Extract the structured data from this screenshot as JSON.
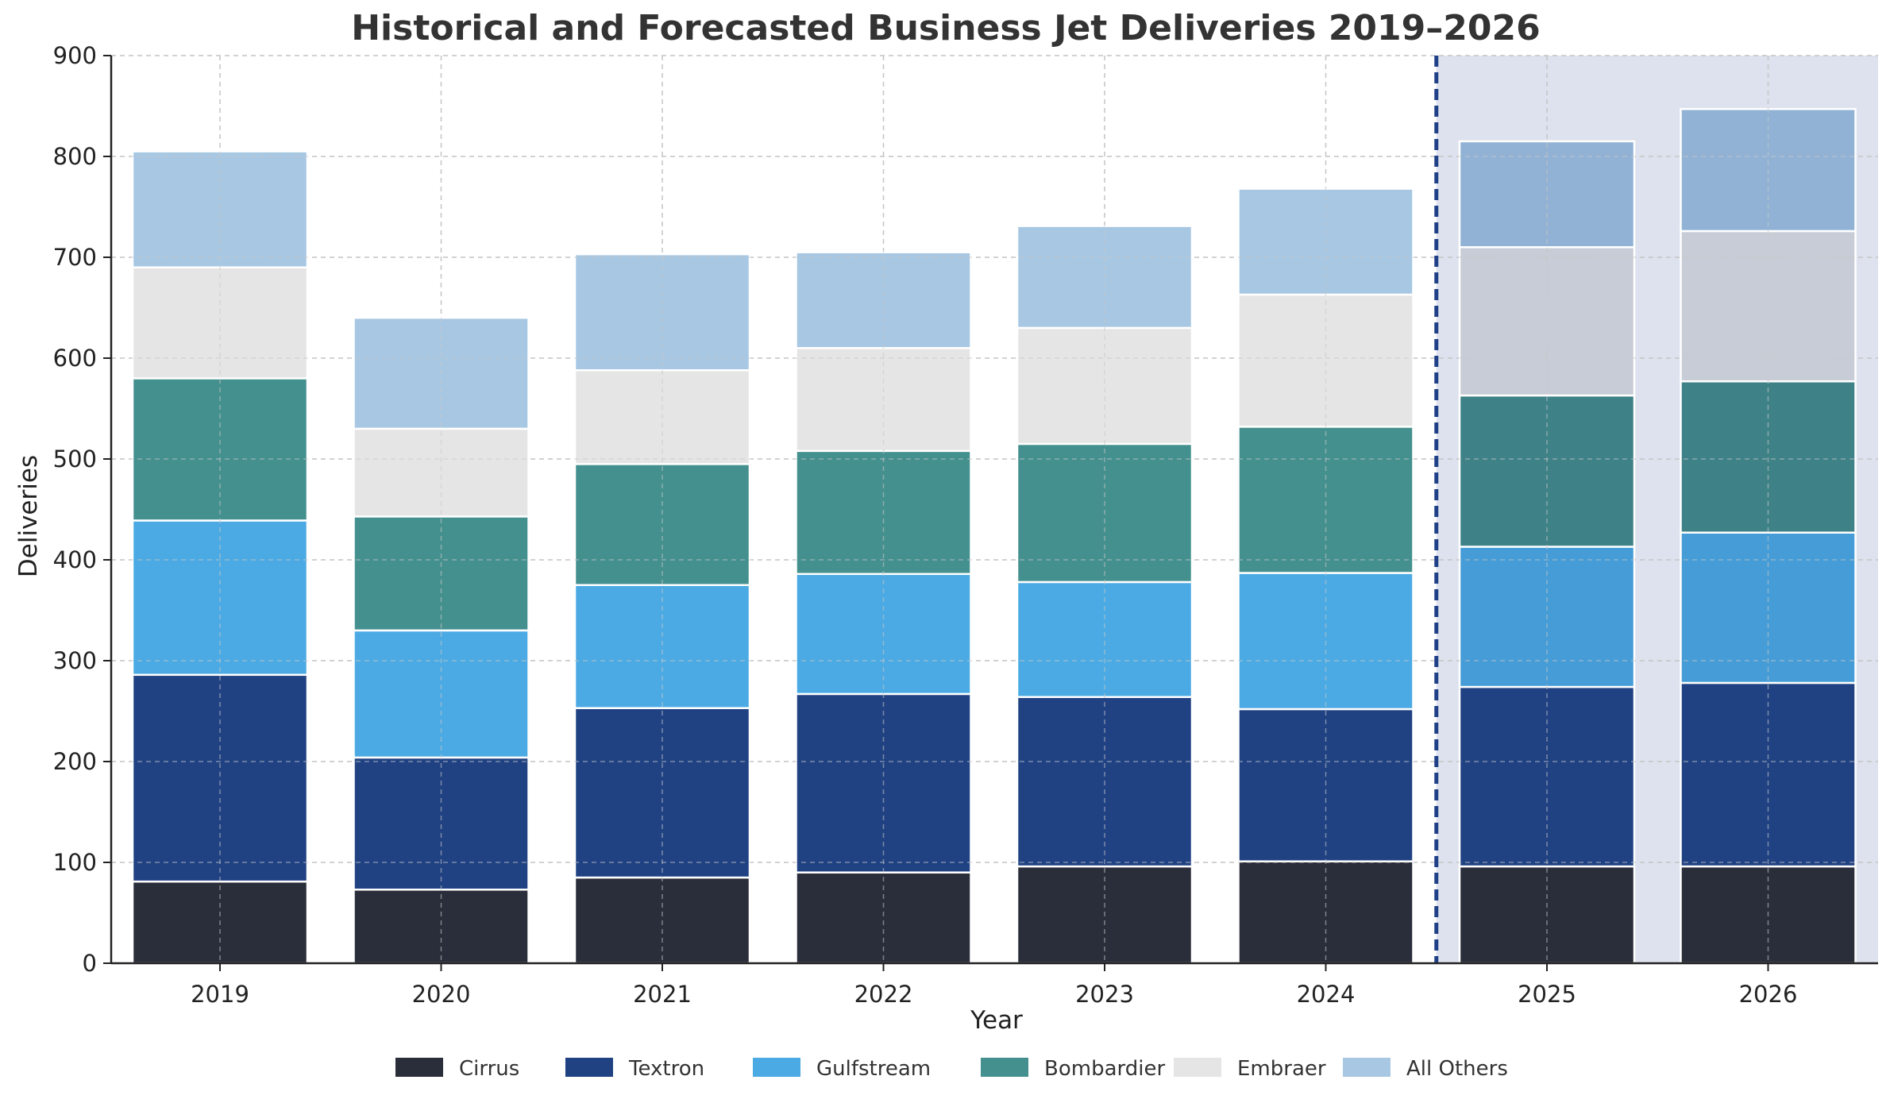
{
  "chart_data": {
    "type": "bar",
    "stacked": true,
    "title": "Historical and Forecasted Business Jet Deliveries 2019–2026",
    "xlabel": "Year",
    "ylabel": "Deliveries",
    "ylim": [
      0,
      900
    ],
    "yticks": [
      0,
      100,
      200,
      300,
      400,
      500,
      600,
      700,
      800,
      900
    ],
    "grid": true,
    "legend_position": "bottom",
    "categories": [
      "2019",
      "2020",
      "2021",
      "2022",
      "2023",
      "2024",
      "2025",
      "2026"
    ],
    "forecast_start_index": 6,
    "series": [
      {
        "name": "Cirrus",
        "color": "#2a2d3a",
        "forecast_color": "#2a2d3a",
        "values": [
          81,
          73,
          85,
          90,
          96,
          101,
          96,
          96
        ]
      },
      {
        "name": "Textron",
        "color": "#204283",
        "forecast_color": "#204283",
        "values": [
          205,
          131,
          168,
          177,
          168,
          151,
          178,
          182
        ]
      },
      {
        "name": "Gulfstream",
        "color": "#4baae3",
        "forecast_color": "#459cd6",
        "values": [
          153,
          126,
          122,
          119,
          114,
          135,
          139,
          149
        ]
      },
      {
        "name": "Bombardier",
        "color": "#44908f",
        "forecast_color": "#3e8287",
        "values": [
          141,
          113,
          120,
          122,
          137,
          145,
          150,
          150
        ]
      },
      {
        "name": "Embraer",
        "color": "#e5e5e5",
        "forecast_color": "#c8ccd6",
        "values": [
          110,
          87,
          93,
          102,
          115,
          131,
          147,
          149
        ]
      },
      {
        "name": "All Others",
        "color": "#a7c7e3",
        "forecast_color": "#91b2d5",
        "values": [
          115,
          110,
          115,
          95,
          101,
          105,
          105,
          121
        ]
      }
    ]
  }
}
